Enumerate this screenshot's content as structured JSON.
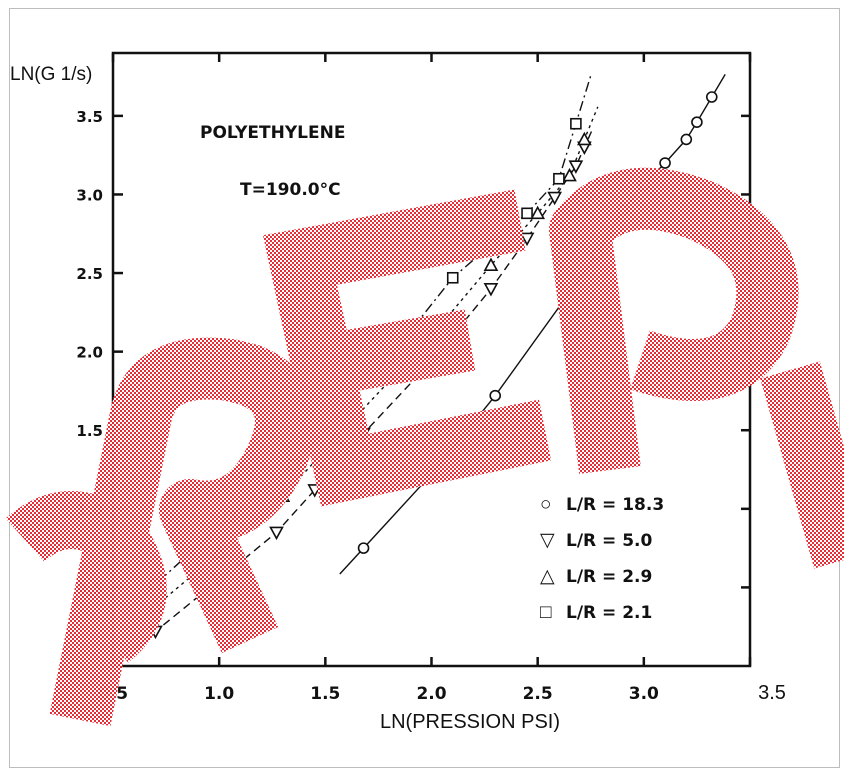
{
  "chart_data": {
    "type": "scatter",
    "title": "POLYETHYLENE",
    "subtitle": "T=190.0°C",
    "xlabel": "LN(PRESSION PSI)",
    "ylabel": "LN(G 1/s)",
    "xlim": [
      0.5,
      3.5
    ],
    "ylim": [
      0.0,
      3.9
    ],
    "xticks": [
      "0.5",
      "1.0",
      "1.5",
      "2.0",
      "2.5",
      "3.0",
      "3.5"
    ],
    "yticks": [
      "0.5",
      "1.0",
      "1.5",
      "2.0",
      "2.5",
      "3.0",
      "3.5"
    ],
    "grid": false,
    "legend_position": "bottom-right",
    "series": [
      {
        "name": "L/R = 18.3",
        "marker": "circle",
        "x": [
          1.68,
          2.0,
          2.3,
          2.78,
          2.9,
          3.0,
          3.1,
          3.2,
          3.25,
          3.32
        ],
        "y": [
          0.75,
          1.22,
          1.72,
          2.62,
          2.9,
          3.06,
          3.2,
          3.35,
          3.46,
          3.62
        ]
      },
      {
        "name": "L/R = 5.0",
        "marker": "triangle-down",
        "x": [
          0.7,
          1.0,
          1.27,
          1.45,
          1.68,
          2.0,
          2.28,
          2.45,
          2.58,
          2.68,
          2.72
        ],
        "y": [
          0.22,
          0.55,
          0.85,
          1.12,
          1.48,
          1.94,
          2.4,
          2.72,
          2.98,
          3.18,
          3.3
        ]
      },
      {
        "name": "L/R = 2.9",
        "marker": "triangle-up",
        "x": [
          0.7,
          1.0,
          1.3,
          1.55,
          2.0,
          2.28,
          2.5,
          2.65,
          2.72
        ],
        "y": [
          0.38,
          0.72,
          1.08,
          1.45,
          2.1,
          2.55,
          2.88,
          3.12,
          3.35
        ]
      },
      {
        "name": "L/R = 2.1",
        "marker": "square",
        "x": [
          0.7,
          1.05,
          1.35,
          1.8,
          2.1,
          2.28,
          2.45,
          2.6,
          2.68
        ],
        "y": [
          0.52,
          0.95,
          1.28,
          1.96,
          2.47,
          2.68,
          2.88,
          3.1,
          3.45
        ]
      }
    ]
  },
  "legend": {
    "items": [
      {
        "symbol": "○",
        "text": "L/R = 18.3"
      },
      {
        "symbol": "▽",
        "text": "L/R = 5.0"
      },
      {
        "symbol": "△",
        "text": "L/R = 2.9"
      },
      {
        "symbol": "□",
        "text": "L/R = 2.1"
      }
    ]
  },
  "watermark": {
    "text": "REPLICA",
    "color": "#d6262e"
  }
}
